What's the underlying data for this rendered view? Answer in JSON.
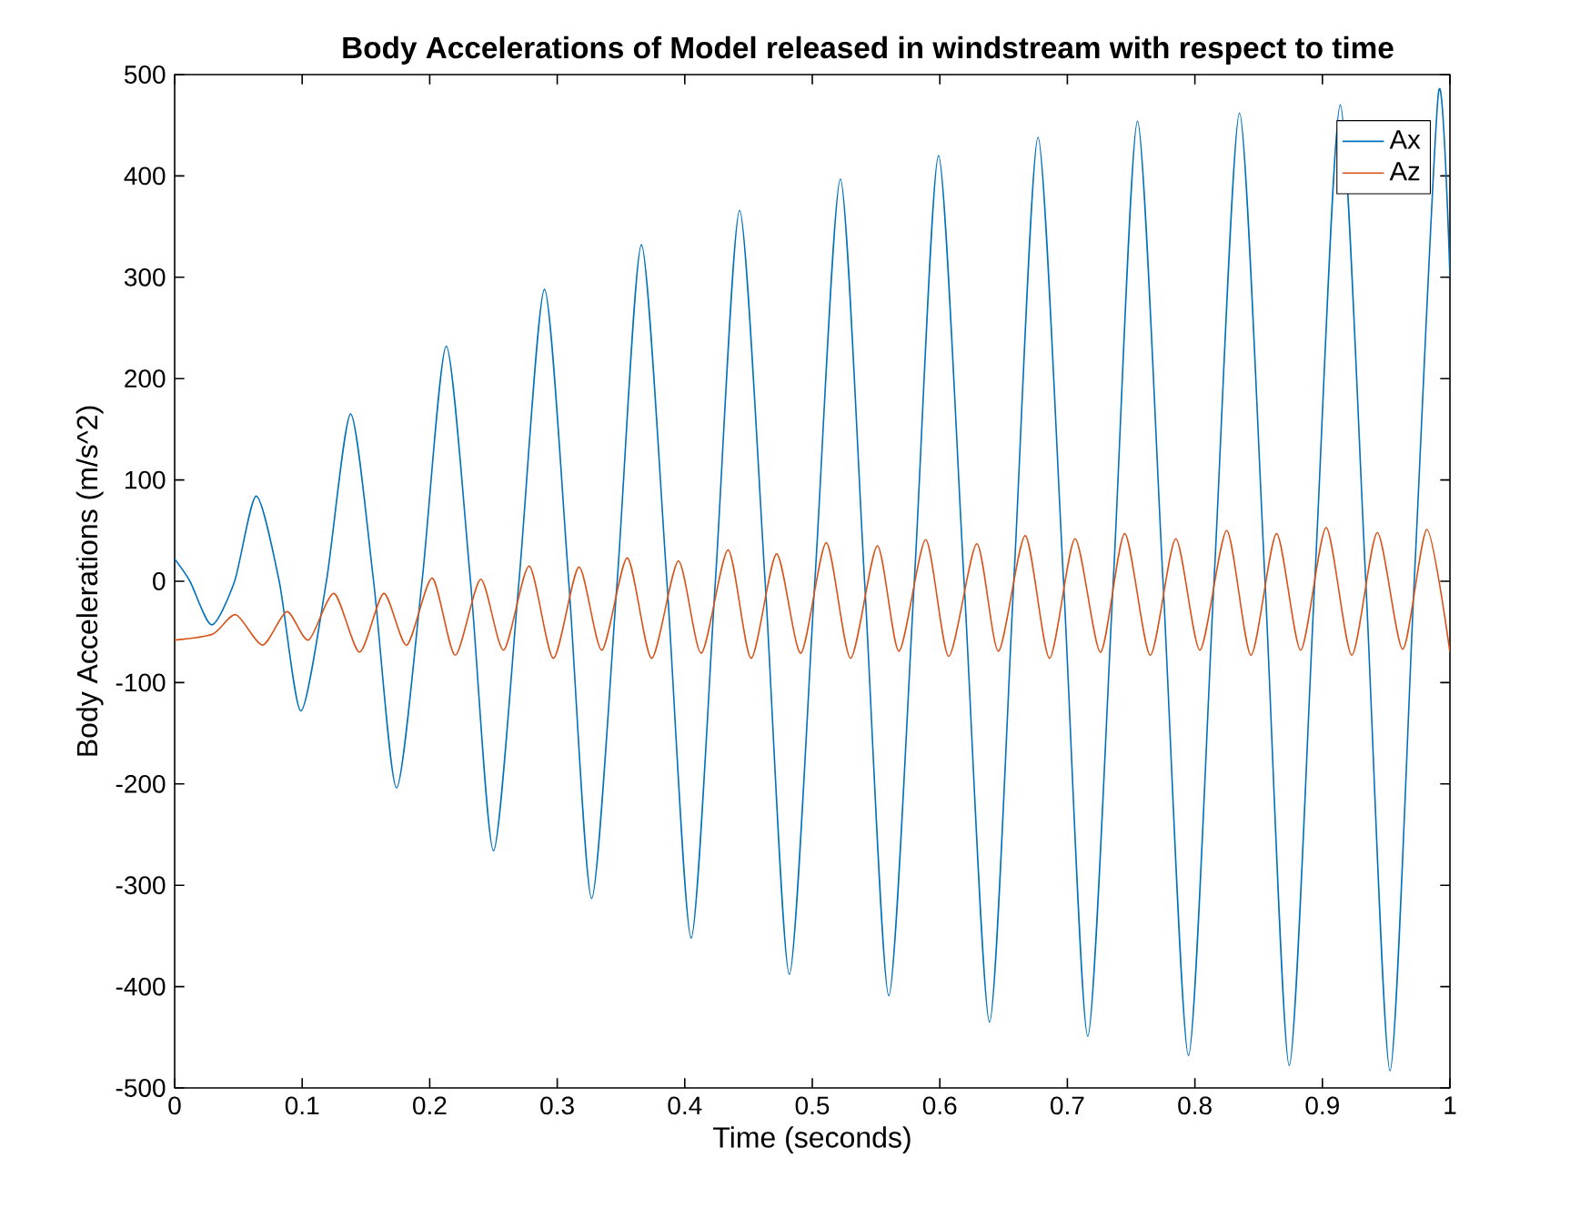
{
  "chart_data": {
    "type": "line",
    "title": "Body Accelerations of Model released in windstream with respect to time",
    "xlabel": "Time (seconds)",
    "ylabel": "Body Accelerations (m/s^2)",
    "xlim": [
      0,
      1
    ],
    "ylim": [
      -500,
      500
    ],
    "xticks": [
      0,
      0.1,
      0.2,
      0.3,
      0.4,
      0.5,
      0.6,
      0.7,
      0.8,
      0.9,
      1
    ],
    "yticks": [
      -500,
      -400,
      -300,
      -200,
      -100,
      0,
      100,
      200,
      300,
      400,
      500
    ],
    "grid": false,
    "legend": "top right",
    "marker": "none",
    "series": [
      {
        "name": "Ax",
        "color": "#0072bd",
        "x": [
          0,
          0.012,
          0.029,
          0.047,
          0.064,
          0.082,
          0.099,
          0.119,
          0.138,
          0.156,
          0.174,
          0.194,
          0.213,
          0.232,
          0.25,
          0.27,
          0.29,
          0.309,
          0.327,
          0.347,
          0.366,
          0.386,
          0.405,
          0.424,
          0.443,
          0.463,
          0.482,
          0.502,
          0.522,
          0.541,
          0.56,
          0.58,
          0.599,
          0.619,
          0.639,
          0.658,
          0.677,
          0.697,
          0.716,
          0.736,
          0.755,
          0.775,
          0.795,
          0.815,
          0.835,
          0.855,
          0.874,
          0.894,
          0.914,
          0.934,
          0.953,
          0.972,
          0.991,
          1.0
        ],
        "values": [
          22,
          0,
          -43,
          0,
          84,
          0,
          -128,
          0,
          165,
          0,
          -204,
          0,
          232,
          0,
          -266,
          0,
          288,
          0,
          -313,
          0,
          332,
          0,
          -352,
          0,
          366,
          0,
          -388,
          0,
          397,
          0,
          -409,
          0,
          420,
          0,
          -435,
          0,
          438,
          0,
          -449,
          0,
          454,
          0,
          -468,
          0,
          462,
          0,
          -478,
          0,
          470,
          0,
          -483,
          0,
          482,
          300
        ]
      },
      {
        "name": "Az",
        "color": "#d95319",
        "x": [
          0,
          0.03,
          0.048,
          0.069,
          0.088,
          0.105,
          0.125,
          0.145,
          0.164,
          0.182,
          0.202,
          0.22,
          0.24,
          0.258,
          0.278,
          0.297,
          0.317,
          0.335,
          0.355,
          0.374,
          0.395,
          0.413,
          0.434,
          0.452,
          0.472,
          0.491,
          0.511,
          0.53,
          0.551,
          0.568,
          0.589,
          0.607,
          0.629,
          0.646,
          0.667,
          0.686,
          0.706,
          0.726,
          0.745,
          0.765,
          0.785,
          0.804,
          0.825,
          0.844,
          0.864,
          0.883,
          0.903,
          0.923,
          0.943,
          0.963,
          0.982,
          1.0
        ],
        "values": [
          -58,
          -52,
          -33,
          -63,
          -30,
          -58,
          -12,
          -70,
          -12,
          -63,
          3,
          -73,
          2,
          -68,
          15,
          -76,
          14,
          -68,
          23,
          -76,
          20,
          -71,
          31,
          -76,
          27,
          -71,
          38,
          -76,
          35,
          -69,
          41,
          -74,
          37,
          -69,
          45,
          -76,
          42,
          -70,
          47,
          -73,
          42,
          -68,
          50,
          -73,
          47,
          -68,
          53,
          -73,
          48,
          -67,
          51,
          -70
        ]
      }
    ]
  }
}
